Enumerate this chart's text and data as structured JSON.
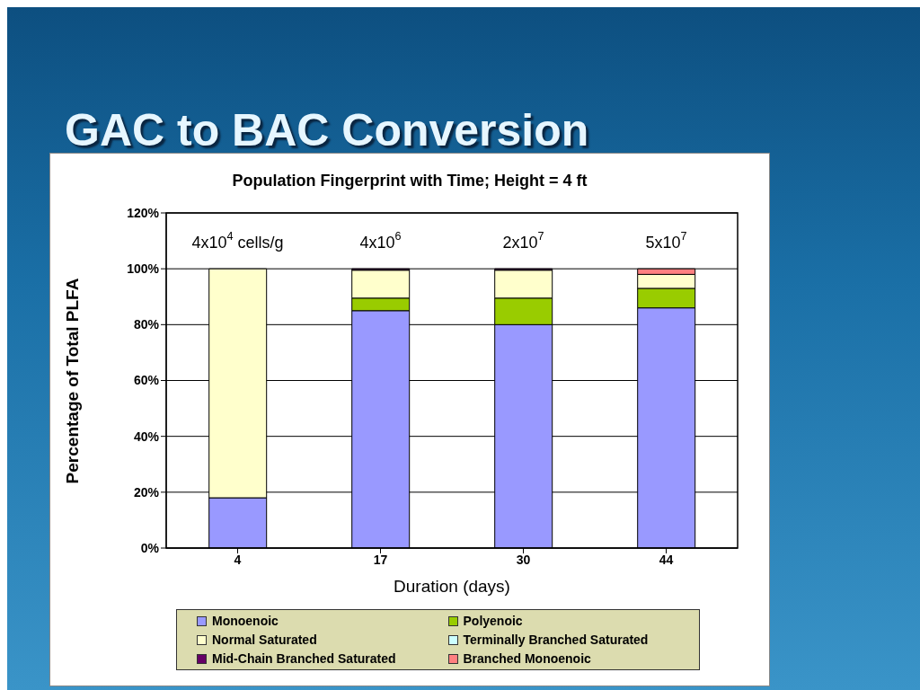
{
  "chart_data": {
    "type": "bar",
    "title": "GAC to BAC Conversion",
    "subtitle": "Population Fingerprint with Time; Height = 4 ft",
    "xlabel": "Duration (days)",
    "ylabel": "Percentage of Total PLFA",
    "categories": [
      "4",
      "17",
      "30",
      "44"
    ],
    "series": [
      {
        "name": "Monoenoic",
        "color": "#9999ff",
        "values": [
          18,
          85,
          80,
          86
        ]
      },
      {
        "name": "Polyenoic",
        "color": "#99cc00",
        "values": [
          0,
          4.5,
          9.5,
          7
        ]
      },
      {
        "name": "Normal Saturated",
        "color": "#ffffcc",
        "values": [
          82,
          10,
          10,
          5
        ]
      },
      {
        "name": "Terminally Branched Saturated",
        "color": "#ccffff",
        "values": [
          0,
          0,
          0,
          0
        ]
      },
      {
        "name": "Mid-Chain Branched Saturated",
        "color": "#660066",
        "values": [
          0,
          0.5,
          0.5,
          0
        ]
      },
      {
        "name": "Branched Monoenoic",
        "color": "#ff8080",
        "values": [
          0,
          0,
          0,
          2
        ]
      }
    ],
    "stacked": true,
    "ylim": [
      0,
      120
    ],
    "yticks": [
      {
        "value": 0,
        "label": "0%"
      },
      {
        "value": 20,
        "label": "20%"
      },
      {
        "value": 40,
        "label": "40%"
      },
      {
        "value": 60,
        "label": "60%"
      },
      {
        "value": 80,
        "label": "80%"
      },
      {
        "value": 100,
        "label": "100%"
      },
      {
        "value": 120,
        "label": "120%"
      }
    ],
    "grid": "y",
    "legend": "bottom",
    "annotations": [
      "4x10$^{4}$ cells/g",
      "4x10$^{6}$",
      "2x10$^{7}$",
      "5x10$^{7}$"
    ]
  }
}
